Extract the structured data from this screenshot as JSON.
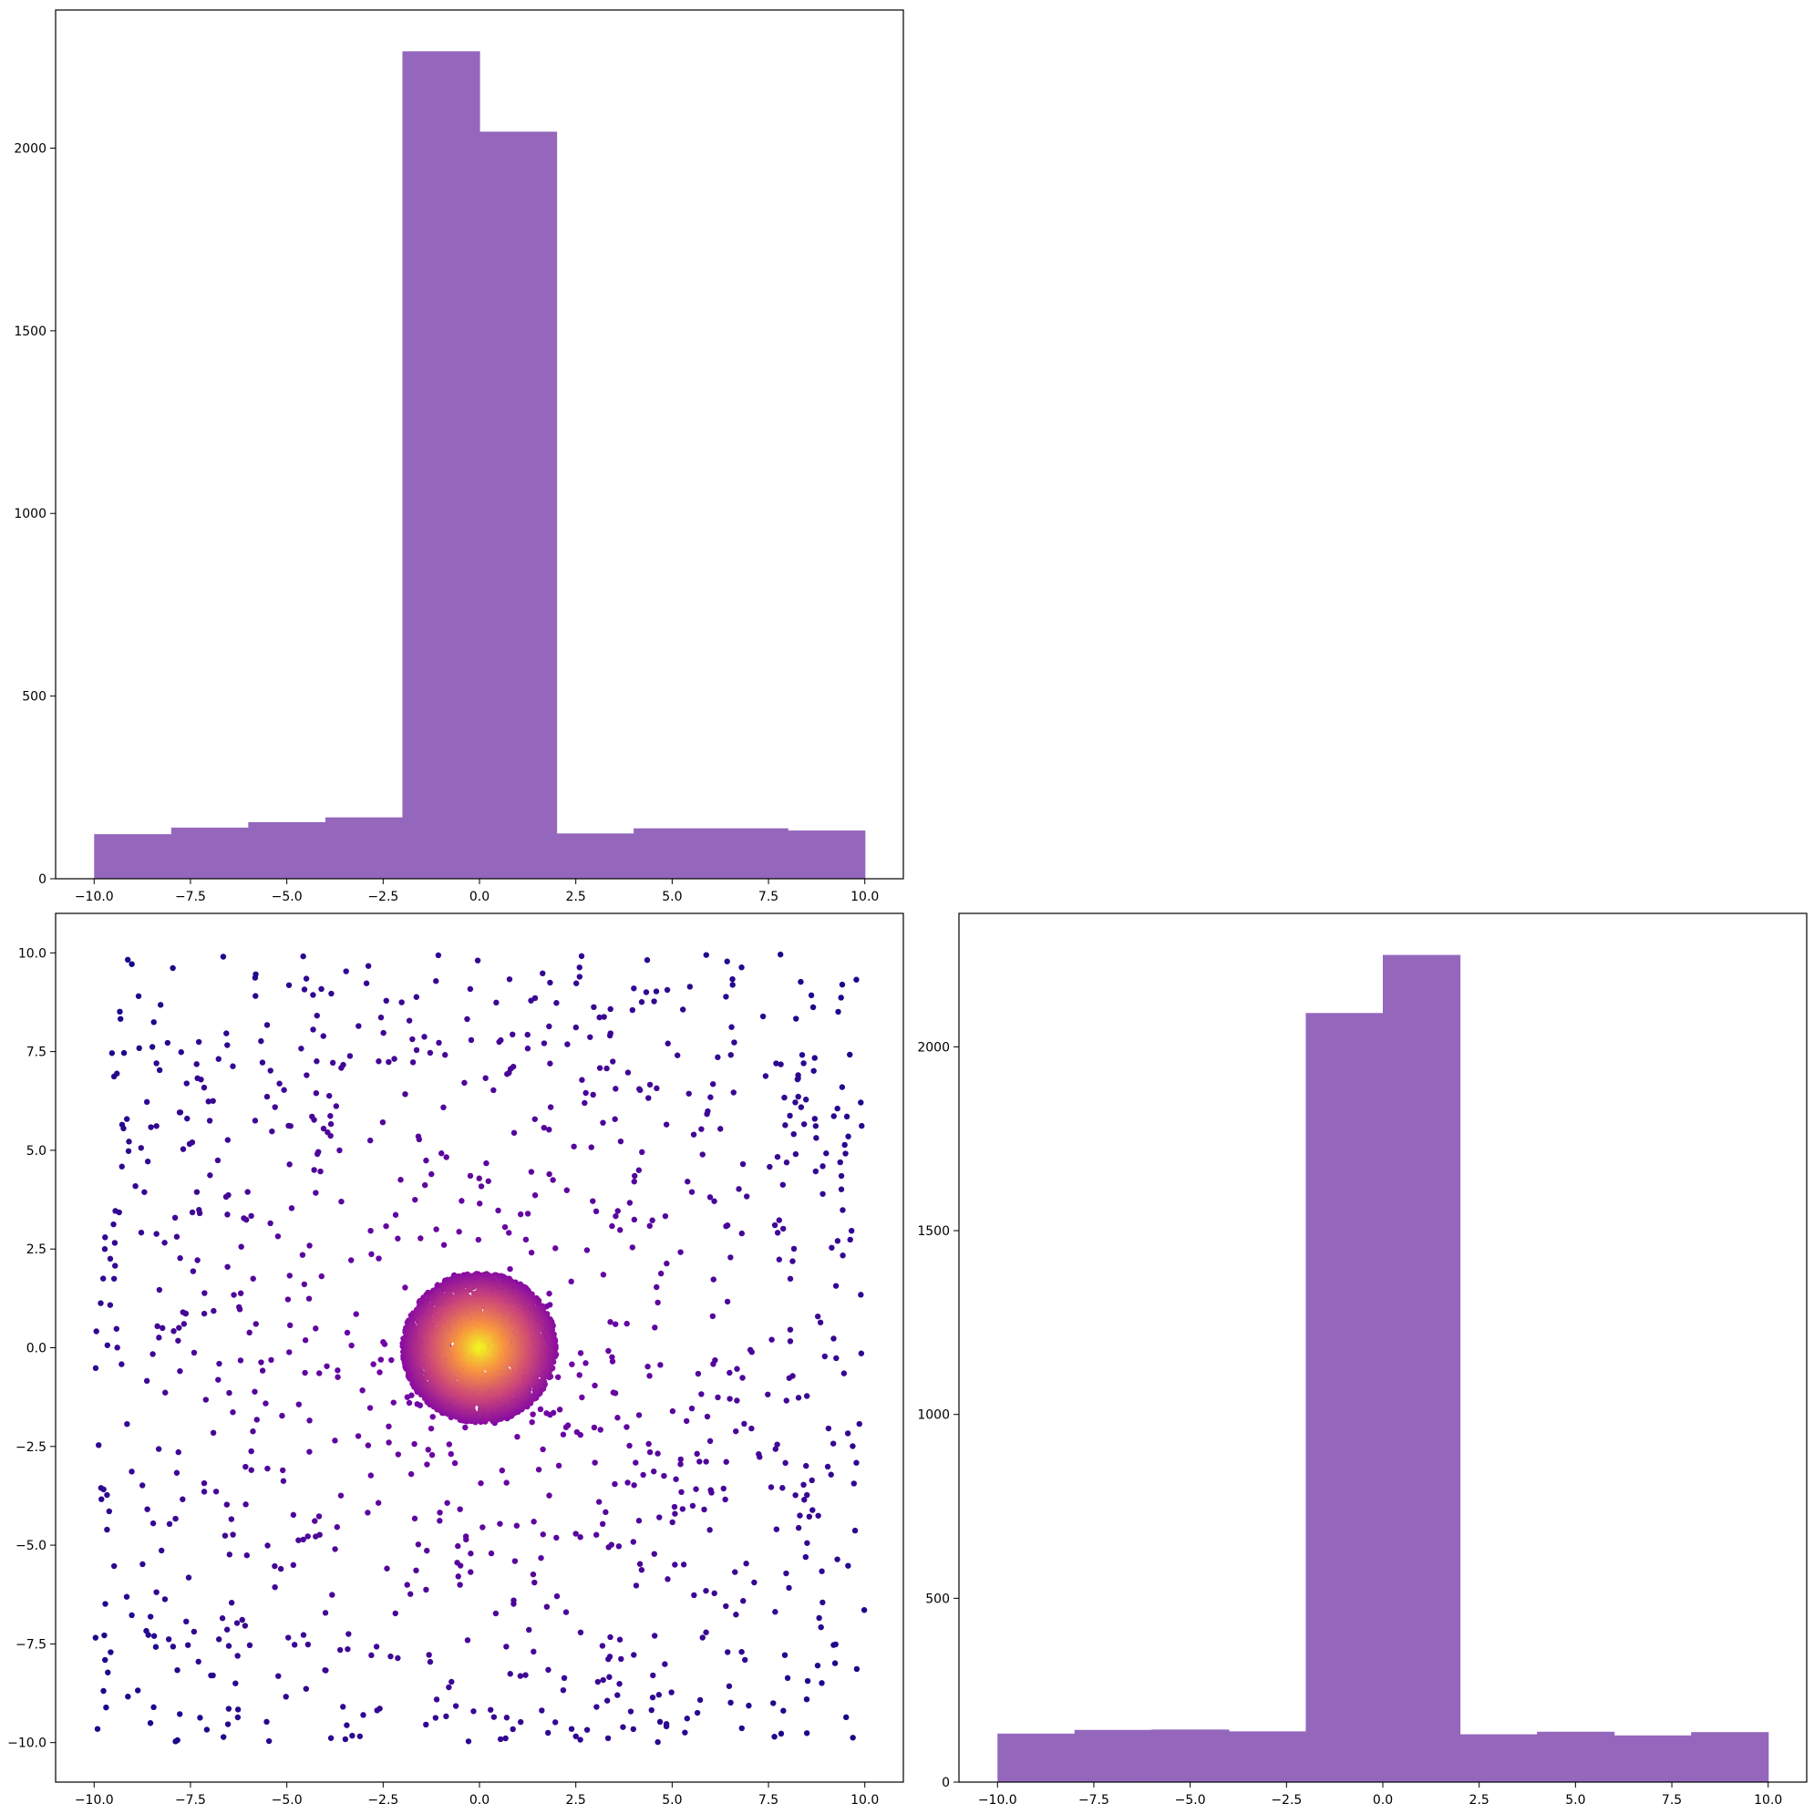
{
  "chart_data": [
    {
      "panel": "top-left",
      "type": "bar",
      "subtype": "histogram",
      "color": "#9467bd",
      "bin_edges": [
        -10,
        -8,
        -6,
        -4,
        -2,
        0,
        2,
        4,
        6,
        8,
        10
      ],
      "values": [
        122,
        140,
        155,
        168,
        2265,
        2045,
        124,
        138,
        138,
        132
      ],
      "xlim": [
        -11,
        11
      ],
      "ylim": [
        0,
        2378
      ],
      "xticks": [
        -10.0,
        -7.5,
        -5.0,
        -2.5,
        0.0,
        2.5,
        5.0,
        7.5,
        10.0
      ],
      "yticks": [
        0,
        500,
        1000,
        1500,
        2000
      ],
      "xticklabels": [
        "−10.0",
        "−7.5",
        "−5.0",
        "−2.5",
        "0.0",
        "2.5",
        "5.0",
        "7.5",
        "10.0"
      ],
      "yticklabels": [
        "0",
        "500",
        "1000",
        "1500",
        "2000"
      ],
      "title": "",
      "xlabel": "",
      "ylabel": ""
    },
    {
      "panel": "bottom-left",
      "type": "scatter",
      "colormap": "plasma",
      "color_by": "density",
      "uniform_background": {
        "x_range": [
          -10,
          10
        ],
        "y_range": [
          -10,
          10
        ],
        "count": 1000
      },
      "central_cluster": {
        "center": [
          0,
          0
        ],
        "radius": 2,
        "count": 4000
      },
      "xlim": [
        -11,
        11
      ],
      "ylim": [
        -11,
        11
      ],
      "xticks": [
        -10.0,
        -7.5,
        -5.0,
        -2.5,
        0.0,
        2.5,
        5.0,
        7.5,
        10.0
      ],
      "yticks": [
        -10.0,
        -7.5,
        -5.0,
        -2.5,
        0.0,
        2.5,
        5.0,
        7.5,
        10.0
      ],
      "xticklabels": [
        "−10.0",
        "−7.5",
        "−5.0",
        "−2.5",
        "0.0",
        "2.5",
        "5.0",
        "7.5",
        "10.0"
      ],
      "yticklabels": [
        "−10.0",
        "−7.5",
        "−5.0",
        "−2.5",
        "0.0",
        "2.5",
        "5.0",
        "7.5",
        "10.0"
      ],
      "title": "",
      "xlabel": "",
      "ylabel": ""
    },
    {
      "panel": "bottom-right",
      "type": "bar",
      "subtype": "histogram",
      "color": "#9467bd",
      "bin_edges": [
        -10,
        -8,
        -6,
        -4,
        -2,
        0,
        2,
        4,
        6,
        8,
        10
      ],
      "values": [
        132,
        142,
        143,
        138,
        2092,
        2250,
        130,
        137,
        127,
        136
      ],
      "xlim": [
        -11,
        11
      ],
      "ylim": [
        0,
        2363
      ],
      "xticks": [
        -10.0,
        -7.5,
        -5.0,
        -2.5,
        0.0,
        2.5,
        5.0,
        7.5,
        10.0
      ],
      "yticks": [
        0,
        500,
        1000,
        1500,
        2000
      ],
      "xticklabels": [
        "−10.0",
        "−7.5",
        "−5.0",
        "−2.5",
        "0.0",
        "2.5",
        "5.0",
        "7.5",
        "10.0"
      ],
      "yticklabels": [
        "0",
        "500",
        "1000",
        "1500",
        "2000"
      ],
      "title": "",
      "xlabel": "",
      "ylabel": ""
    }
  ]
}
